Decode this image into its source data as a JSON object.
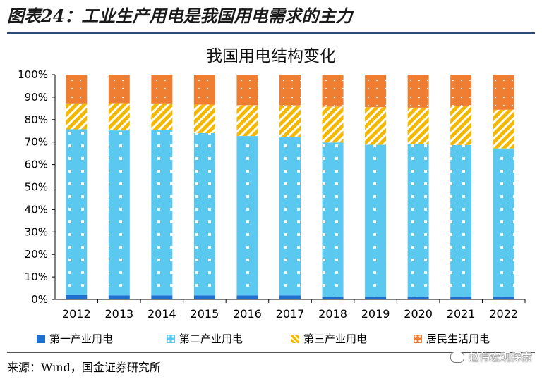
{
  "header": {
    "figure_title": "图表24：工业生产用电是我国用电需求的主力"
  },
  "chart_data": {
    "type": "bar",
    "stacked": true,
    "title": "我国用电结构变化",
    "categories": [
      "2012",
      "2013",
      "2014",
      "2015",
      "2016",
      "2017",
      "2018",
      "2019",
      "2020",
      "2021",
      "2022"
    ],
    "y_tick_labels": [
      "0%",
      "10%",
      "20%",
      "30%",
      "40%",
      "50%",
      "60%",
      "70%",
      "80%",
      "90%",
      "100%"
    ],
    "ylim": [
      0,
      100
    ],
    "grid": false,
    "legend_position": "bottom",
    "series": [
      {
        "name": "第一产业用电",
        "color": "#1f6fd1",
        "pattern": "solid",
        "values": [
          1.9,
          1.8,
          1.8,
          1.8,
          1.8,
          1.8,
          1.1,
          1.1,
          1.1,
          1.2,
          1.2
        ]
      },
      {
        "name": "第二产业用电",
        "color": "#5bc8f0",
        "pattern": "dots",
        "values": [
          73.8,
          73.4,
          73.5,
          72.2,
          70.9,
          70.3,
          68.7,
          67.7,
          68.0,
          67.5,
          66.0
        ]
      },
      {
        "name": "第三产业用电",
        "color": "#f5b800",
        "pattern": "stripes",
        "values": [
          11.5,
          12.1,
          11.9,
          12.7,
          13.7,
          14.2,
          16.0,
          16.7,
          16.2,
          17.2,
          17.2
        ]
      },
      {
        "name": "居民生活用电",
        "color": "#f07e32",
        "pattern": "dots",
        "values": [
          12.8,
          12.7,
          12.8,
          13.3,
          13.6,
          13.7,
          14.2,
          14.5,
          14.7,
          14.1,
          15.6
        ]
      }
    ]
  },
  "footer": {
    "source": "来源：Wind，国金证券研究所",
    "watermark": "赵伟宏观探索"
  }
}
